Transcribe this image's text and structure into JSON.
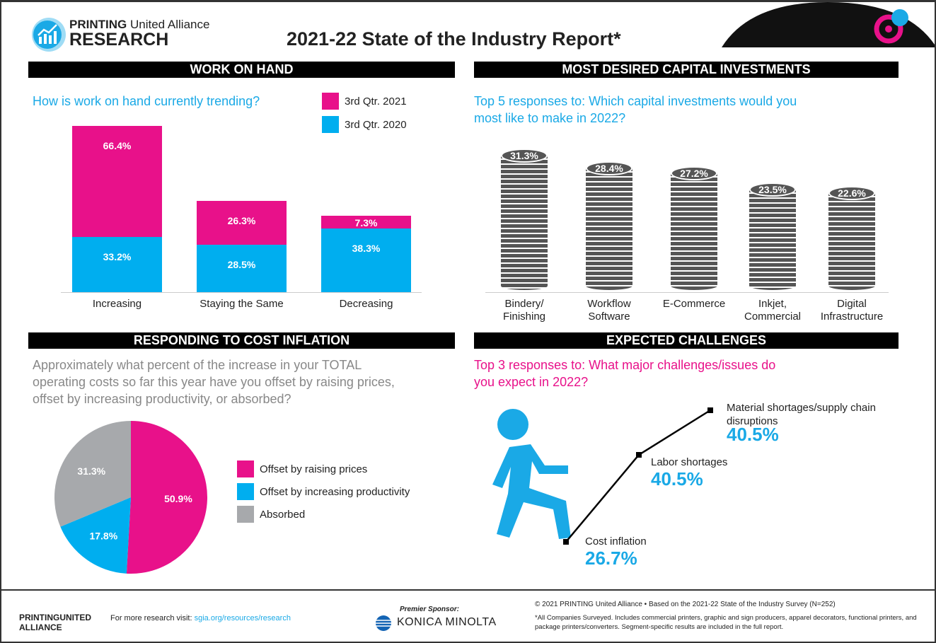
{
  "header": {
    "brand_line1_bold": "PRINTING",
    "brand_line1_rest": "United Alliance",
    "brand_line2": "RESEARCH",
    "title": "2021-22 State of the Industry Report*"
  },
  "colors": {
    "pink": "#e8118a",
    "cyan": "#00aeef",
    "gray": "#a7a9ac",
    "coin": "#555555"
  },
  "sections": {
    "work": "WORK ON HAND",
    "capital": "MOST DESIRED CAPITAL INVESTMENTS",
    "cost": "RESPONDING TO COST INFLATION",
    "challenges": "EXPECTED CHALLENGES"
  },
  "chart_data": [
    {
      "type": "bar",
      "stacked": true,
      "question": "How is work on hand currently trending?",
      "categories": [
        "Increasing",
        "Staying the Same",
        "Decreasing"
      ],
      "series": [
        {
          "name": "3rd Qtr. 2020",
          "color": "#00aeef",
          "values": [
            33.2,
            28.5,
            38.3
          ],
          "labels": [
            "33.2%",
            "28.5%",
            "38.3%"
          ]
        },
        {
          "name": "3rd Qtr. 2021",
          "color": "#e8118a",
          "values": [
            66.4,
            26.3,
            7.3
          ],
          "labels": [
            "66.4%",
            "26.3%",
            "7.3%"
          ]
        }
      ],
      "legend": [
        {
          "name": "3rd Qtr. 2021",
          "color": "#e8118a"
        },
        {
          "name": "3rd Qtr. 2020",
          "color": "#00aeef"
        }
      ]
    },
    {
      "type": "bar",
      "question": "Top 5 responses to: Which capital investments would you most like to make in 2022?",
      "categories": [
        "Bindery/\nFinishing",
        "Workflow\nSoftware",
        "E-Commerce",
        "Inkjet,\nCommercial",
        "Digital\nInfrastructure"
      ],
      "values": [
        31.3,
        28.4,
        27.2,
        23.5,
        22.6
      ],
      "labels": [
        "31.3%",
        "28.4%",
        "27.2%",
        "23.5%",
        "22.6%"
      ]
    },
    {
      "type": "pie",
      "question": "Approximately what percent of the increase in your TOTAL operating costs so far this year have you offset by raising prices, offset by increasing productivity, or absorbed?",
      "slices": [
        {
          "name": "Offset by raising prices",
          "value": 50.9,
          "label": "50.9%",
          "color": "#e8118a"
        },
        {
          "name": "Offset by increasing productivity",
          "value": 17.8,
          "label": "17.8%",
          "color": "#00aeef"
        },
        {
          "name": "Absorbed",
          "value": 31.3,
          "label": "31.3%",
          "color": "#a7a9ac"
        }
      ]
    },
    {
      "type": "line",
      "question": "Top 3 responses to: What major challenges/issues do you expect in 2022?",
      "points": [
        {
          "name": "Cost inflation",
          "value": "26.7%"
        },
        {
          "name": "Labor shortages",
          "value": "40.5%"
        },
        {
          "name": "Material shortages/supply chain disruptions",
          "value": "40.5%"
        }
      ]
    }
  ],
  "footer": {
    "visit_text": "For more research visit:",
    "visit_link": "sgia.org/resources/research",
    "sponsor_label": "Premier Sponsor:",
    "sponsor": "KONICA MINOLTA",
    "copyright": "© 2021 PRINTING United Alliance • Based on the 2021-22 State of the Industry Survey (N=252)",
    "note": "*All Companies Surveyed. Includes commercial printers, graphic and sign producers, apparel decorators, functional printers, and package printers/converters. Segment-specific results are included in the full report.",
    "logo_text": "PRINTINGUNITED ALLIANCE"
  }
}
